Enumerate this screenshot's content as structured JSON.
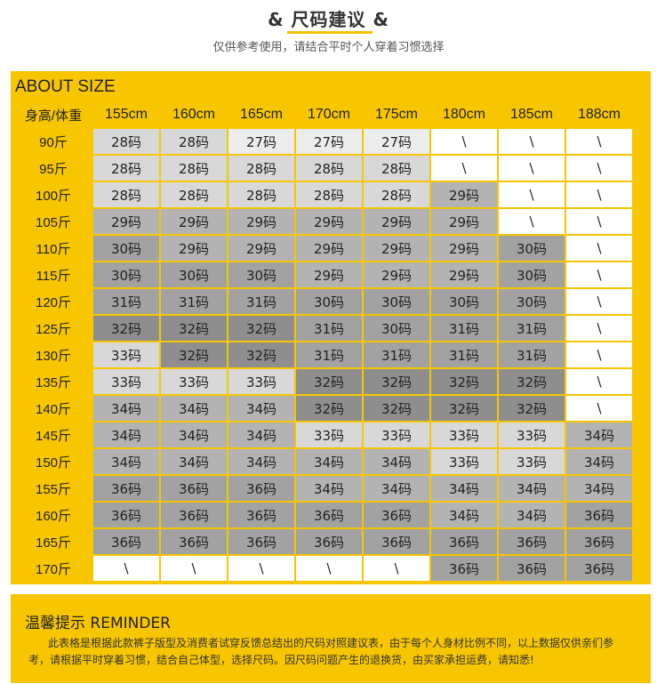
{
  "header": {
    "title": "& 尺码建议 &",
    "subtitle": "仅供参考使用，请结合平时个人穿着习惯选择"
  },
  "size_table": {
    "title": "ABOUT SIZE",
    "corner_label": "身高/体重",
    "heights": [
      "155cm",
      "160cm",
      "165cm",
      "170cm",
      "175cm",
      "180cm",
      "185cm",
      "188cm"
    ],
    "rows": [
      {
        "weight": "90斤",
        "values": [
          "28码",
          "28码",
          "27码",
          "27码",
          "27码",
          "\\",
          "\\",
          "\\"
        ]
      },
      {
        "weight": "95斤",
        "values": [
          "28码",
          "28码",
          "28码",
          "28码",
          "28码",
          "\\",
          "\\",
          "\\"
        ]
      },
      {
        "weight": "100斤",
        "values": [
          "28码",
          "28码",
          "28码",
          "28码",
          "28码",
          "29码",
          "\\",
          "\\"
        ]
      },
      {
        "weight": "105斤",
        "values": [
          "29码",
          "29码",
          "29码",
          "29码",
          "29码",
          "29码",
          "\\",
          "\\"
        ]
      },
      {
        "weight": "110斤",
        "values": [
          "30码",
          "29码",
          "29码",
          "29码",
          "29码",
          "29码",
          "30码",
          "\\"
        ]
      },
      {
        "weight": "115斤",
        "values": [
          "30码",
          "30码",
          "30码",
          "29码",
          "29码",
          "29码",
          "30码",
          "\\"
        ]
      },
      {
        "weight": "120斤",
        "values": [
          "31码",
          "31码",
          "31码",
          "30码",
          "30码",
          "30码",
          "30码",
          "\\"
        ]
      },
      {
        "weight": "125斤",
        "values": [
          "32码",
          "32码",
          "32码",
          "31码",
          "30码",
          "31码",
          "31码",
          "\\"
        ]
      },
      {
        "weight": "130斤",
        "values": [
          "33码",
          "32码",
          "32码",
          "31码",
          "31码",
          "31码",
          "31码",
          "\\"
        ]
      },
      {
        "weight": "135斤",
        "values": [
          "33码",
          "33码",
          "33码",
          "32码",
          "32码",
          "32码",
          "32码",
          "\\"
        ]
      },
      {
        "weight": "140斤",
        "values": [
          "34码",
          "34码",
          "34码",
          "32码",
          "32码",
          "32码",
          "32码",
          "\\"
        ]
      },
      {
        "weight": "145斤",
        "values": [
          "34码",
          "34码",
          "34码",
          "33码",
          "33码",
          "33码",
          "33码",
          "34码"
        ]
      },
      {
        "weight": "150斤",
        "values": [
          "34码",
          "34码",
          "34码",
          "34码",
          "34码",
          "33码",
          "33码",
          "34码"
        ]
      },
      {
        "weight": "155斤",
        "values": [
          "36码",
          "36码",
          "36码",
          "34码",
          "34码",
          "34码",
          "34码",
          "34码"
        ]
      },
      {
        "weight": "160斤",
        "values": [
          "36码",
          "36码",
          "36码",
          "36码",
          "36码",
          "34码",
          "34码",
          "36码"
        ]
      },
      {
        "weight": "165斤",
        "values": [
          "36码",
          "36码",
          "36码",
          "36码",
          "36码",
          "36码",
          "36码",
          "36码"
        ]
      },
      {
        "weight": "170斤",
        "values": [
          "\\",
          "\\",
          "\\",
          "\\",
          "\\",
          "36码",
          "36码",
          "36码"
        ]
      }
    ]
  },
  "reminder": {
    "title": "温馨提示 REMINDER",
    "text": "此表格是根据此款裤子版型及消费者试穿反馈总结出的尺码对照建议表，由于每个人身材比例不同，以上数据仅供亲们参考，请根据平时穿着习惯，结合自己体型，选择尺码。因尺码问题产生的退换货，由买家承担运费，请知悉!"
  },
  "colors": {
    "accent_yellow": "#f7c600",
    "size_27": "#ececec",
    "size_28": "#d8d8d8",
    "size_29": "#b3b3b3",
    "size_30": "#a2a2a2",
    "size_31": "#a2a2a2",
    "size_32": "#8e8e8e",
    "size_33": "#d8d8d8",
    "size_34": "#b3b3b3",
    "size_36": "#a2a2a2",
    "not_applicable": "#ffffff"
  }
}
